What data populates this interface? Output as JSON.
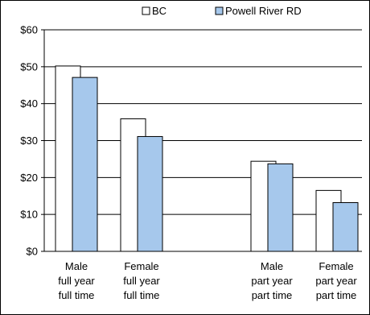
{
  "chart_data": {
    "type": "bar",
    "title": "",
    "xlabel": "",
    "ylabel": "",
    "ylim": [
      0,
      60
    ],
    "yticks": [
      0,
      10,
      20,
      30,
      40,
      50,
      60
    ],
    "ytick_labels": [
      "$0",
      "$10",
      "$20",
      "$30",
      "$40",
      "$50",
      "$60"
    ],
    "grid": "horizontal",
    "legend_position": "top",
    "categories": [
      [
        "Male",
        "full year",
        "full time"
      ],
      [
        "Female",
        "full year",
        "full time"
      ],
      [
        "Male",
        "part year",
        "part time"
      ],
      [
        "Female",
        "part year",
        "part time"
      ]
    ],
    "series": [
      {
        "name": "BC",
        "color": "#ffffff",
        "values": [
          50.2,
          35.9,
          24.4,
          16.5
        ]
      },
      {
        "name": "Powell River RD",
        "color": "#a6c8ec",
        "values": [
          47.1,
          31.1,
          23.7,
          13.2
        ]
      }
    ]
  }
}
